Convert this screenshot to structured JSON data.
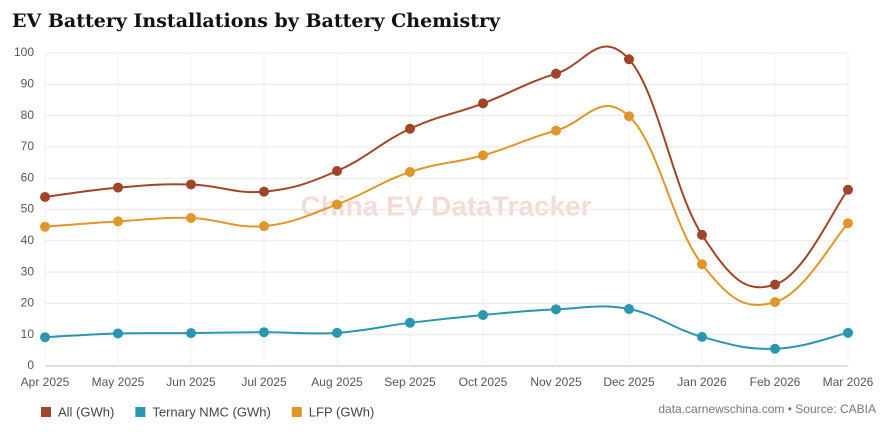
{
  "chart_data": {
    "type": "line",
    "title": "EV Battery Installations by Battery Chemistry",
    "categories": [
      "Apr 2025",
      "May 2025",
      "Jun 2025",
      "Jul 2025",
      "Aug 2025",
      "Sep 2025",
      "Oct 2025",
      "Nov 2025",
      "Dec 2025",
      "Jan 2026",
      "Feb 2026",
      "Mar 2026"
    ],
    "series": [
      {
        "name": "All (GWh)",
        "color": "#a0452a",
        "values": [
          54,
          57,
          58,
          55.7,
          62.3,
          75.8,
          83.9,
          93.4,
          98,
          41.9,
          26,
          56.3
        ]
      },
      {
        "name": "Ternary NMC (GWh)",
        "color": "#2a96b0",
        "values": [
          9.2,
          10.4,
          10.5,
          10.8,
          10.6,
          13.8,
          16.3,
          18.1,
          18.2,
          9.3,
          5.5,
          10.6
        ]
      },
      {
        "name": "LFP (GWh)",
        "color": "#e0962a",
        "values": [
          44.5,
          46.2,
          47.3,
          44.7,
          51.6,
          62,
          67.3,
          75.2,
          79.8,
          32.5,
          20.4,
          45.6
        ]
      }
    ],
    "ylim": [
      0,
      100
    ],
    "yticks": [
      0,
      10,
      20,
      30,
      40,
      50,
      60,
      70,
      80,
      90,
      100
    ],
    "grid": true,
    "watermark": "China EV DataTracker",
    "source": "data.carnewschina.com • Source: CABIA"
  }
}
